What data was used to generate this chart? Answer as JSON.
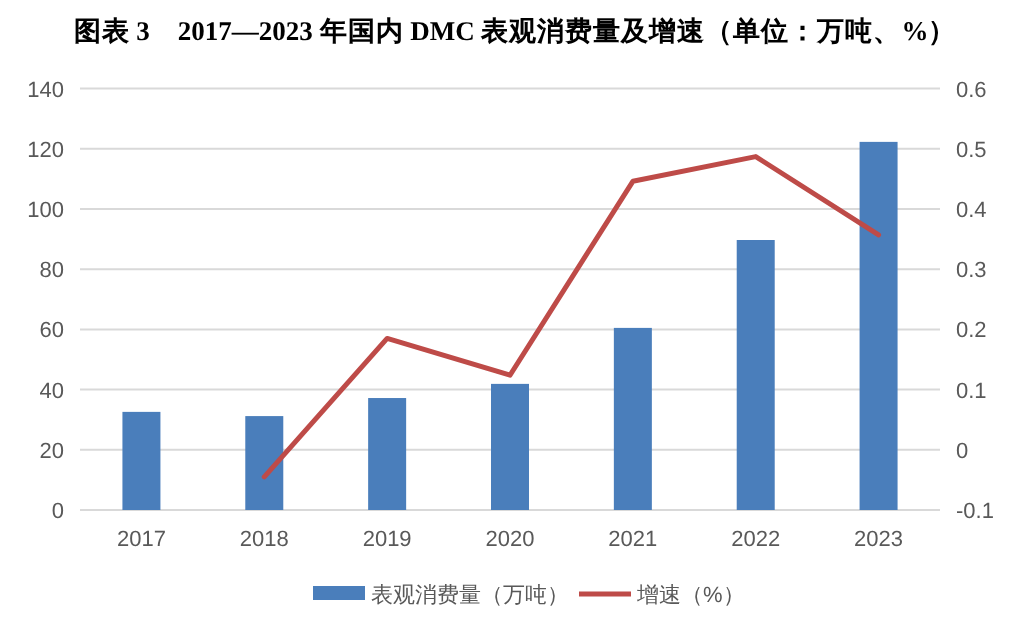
{
  "chart_data": {
    "type": "bar",
    "title": "图表 3　2017—2023 年国内 DMC 表观消费量及增速（单位：万吨、%）",
    "categories": [
      "2017",
      "2018",
      "2019",
      "2020",
      "2021",
      "2022",
      "2023"
    ],
    "series": [
      {
        "name": "表观消费量（万吨）",
        "color": "#4a7ebb",
        "values": [
          32.6,
          31.2,
          37.2,
          41.9,
          60.5,
          89.7,
          122.3
        ]
      },
      {
        "name": "增速（%）",
        "type": "line",
        "axis": "y2",
        "color": "#be4b48",
        "values": [
          null,
          -0.045,
          0.185,
          0.124,
          0.446,
          0.487,
          0.357
        ]
      }
    ],
    "ylim": [
      0,
      140
    ],
    "yticks": [
      0,
      20,
      40,
      60,
      80,
      100,
      120,
      140
    ],
    "y2lim": [
      -0.1,
      0.6
    ],
    "y2ticks": [
      -0.1,
      0,
      0.1,
      0.2,
      0.3,
      0.4,
      0.5,
      0.6
    ],
    "grid": "y",
    "legend": "bottom"
  }
}
